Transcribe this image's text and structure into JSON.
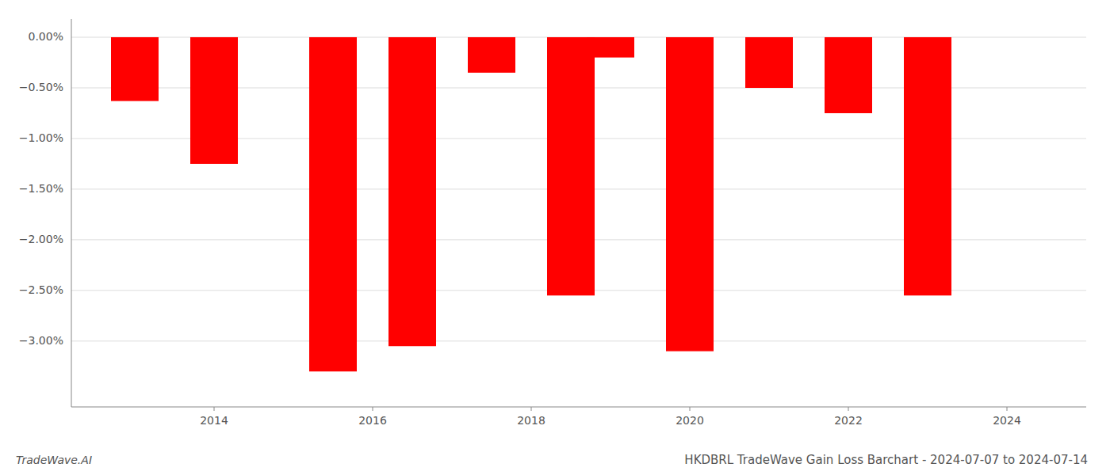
{
  "chart_data": {
    "type": "bar",
    "title": "HKDBRL TradeWave Gain Loss Barchart - 2024-07-07 to 2024-07-14",
    "annotations": [
      "TradeWave.AI"
    ],
    "x": [
      2013.0,
      2014.0,
      2015.5,
      2016.5,
      2017.5,
      2018.5,
      2019.0,
      2020.0,
      2021.0,
      2022.0,
      2023.0
    ],
    "values": [
      -0.63,
      -1.25,
      -3.3,
      -3.05,
      -0.35,
      -2.55,
      -0.2,
      -3.1,
      -0.5,
      -0.75,
      -2.55
    ],
    "color": "#ff0000",
    "xlim": [
      2012.2,
      2025.0
    ],
    "xticks": [
      2014,
      2016,
      2018,
      2020,
      2022,
      2024
    ],
    "ylim": [
      -3.65,
      0.18
    ],
    "yticks": [
      {
        "value": 0.0,
        "label": "0.00%"
      },
      {
        "value": -0.5,
        "label": "−0.50%"
      },
      {
        "value": -1.0,
        "label": "−1.00%"
      },
      {
        "value": -1.5,
        "label": "−1.50%"
      },
      {
        "value": -2.0,
        "label": "−2.00%"
      },
      {
        "value": -2.5,
        "label": "−2.50%"
      },
      {
        "value": -3.0,
        "label": "−3.00%"
      }
    ],
    "grid": true
  }
}
